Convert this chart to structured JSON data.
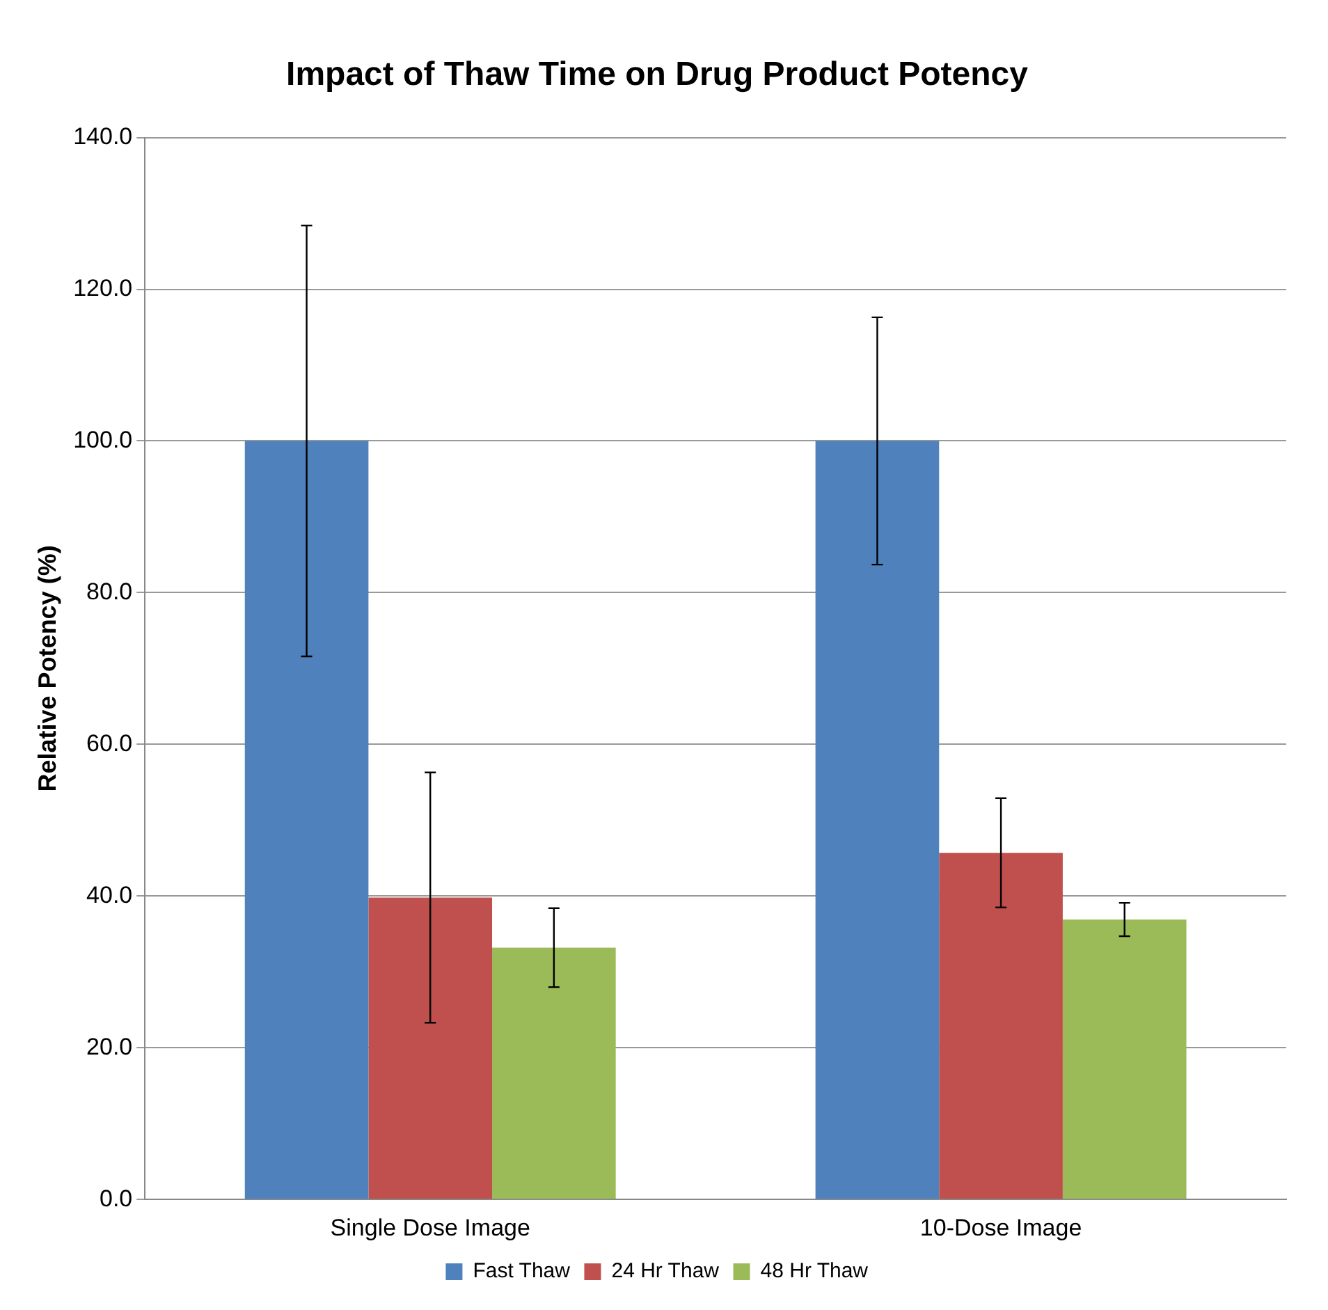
{
  "chart_data": {
    "type": "bar",
    "title": "Impact of Thaw Time on Drug Product Potency",
    "ylabel": "Relative Potency (%)",
    "categories": [
      "Single Dose Image",
      "10-Dose Image"
    ],
    "series": [
      {
        "name": "Fast Thaw",
        "color": "#4f81bd",
        "values": [
          100.0,
          100.0
        ],
        "errors": [
          28.4,
          16.3
        ]
      },
      {
        "name": "24 Hr Thaw",
        "color": "#c0504d",
        "values": [
          39.8,
          45.7
        ],
        "errors": [
          16.5,
          7.2
        ]
      },
      {
        "name": "48 Hr Thaw",
        "color": "#9bbb59",
        "values": [
          33.2,
          36.9
        ],
        "errors": [
          5.2,
          2.2
        ]
      }
    ],
    "ylim": [
      0,
      140
    ],
    "yticks": [
      {
        "value": 0,
        "label": "0.0"
      },
      {
        "value": 20,
        "label": "20.0"
      },
      {
        "value": 40,
        "label": "40.0"
      },
      {
        "value": 60,
        "label": "60.0"
      },
      {
        "value": 80,
        "label": "80.0"
      },
      {
        "value": 100,
        "label": "100.0"
      },
      {
        "value": 120,
        "label": "120.0"
      },
      {
        "value": 140,
        "label": "140.0"
      }
    ],
    "grid": "y",
    "legend": "bottom"
  }
}
